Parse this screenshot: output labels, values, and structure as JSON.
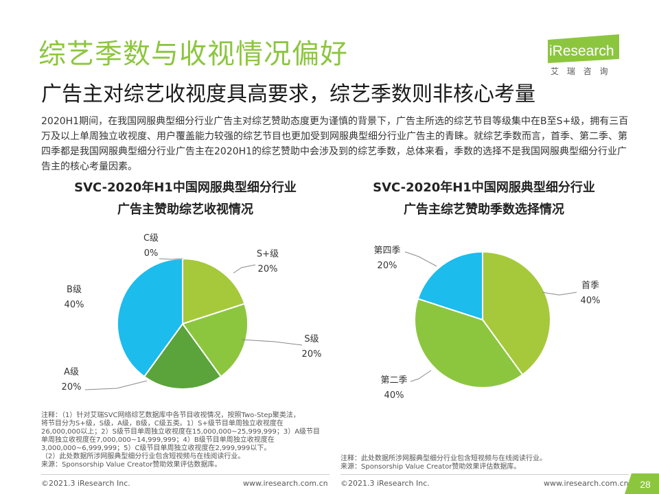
{
  "header": {
    "title": "综艺季数与收视情况偏好",
    "subtitle": "广告主对综艺收视度具高要求，综艺季数则非核心考量",
    "logo_text": "iResearch",
    "logo_cn": "艾 瑞 咨 询"
  },
  "intro": "2020H1期间，在我国网服典型细分行业广告主对综艺赞助态度更为谨慎的背景下，广告主所选的综艺节目等级集中在B至S+级，拥有三百万及以上单周独立收视度、用户覆盖能力较强的综艺节目也更加受到网服典型细分行业广告主的青睐。就综艺季数而言，首季、第二季、第四季都是我国网服典型细分行业广告主在2020H1的综艺赞助中会涉及到的综艺季数，总体来看，季数的选择不是我国网服典型细分行业广告主的核心考量因素。",
  "chart_data": [
    {
      "type": "pie",
      "title_line1": "SVC-2020年H1中国网服典型细分行业",
      "title_line2": "广告主赞助综艺收视情况",
      "slices": [
        {
          "label": "C级",
          "value": 0,
          "display": "0%",
          "color": "#8cc63f"
        },
        {
          "label": "S+级",
          "value": 20,
          "display": "20%",
          "color": "#a5c93b"
        },
        {
          "label": "S级",
          "value": 20,
          "display": "20%",
          "color": "#8cc63f"
        },
        {
          "label": "A级",
          "value": 20,
          "display": "20%",
          "color": "#5aa43b"
        },
        {
          "label": "B级",
          "value": 40,
          "display": "40%",
          "color": "#1cbcec"
        }
      ]
    },
    {
      "type": "pie",
      "title_line1": "SVC-2020年H1中国网服典型细分行业",
      "title_line2": "广告主综艺赞助季数选择情况",
      "slices": [
        {
          "label": "首季",
          "value": 40,
          "display": "40%",
          "color": "#a5c93b"
        },
        {
          "label": "第二季",
          "value": 40,
          "display": "40%",
          "color": "#8cc63f"
        },
        {
          "label": "第四季",
          "value": 20,
          "display": "20%",
          "color": "#1cbcec"
        }
      ]
    }
  ],
  "notes_left": [
    "注释：（1）针对艾瑞SVC网络综艺数据库中各节目收视情况，按照Two-Step聚类法，",
    "将节目分为S+级，S级，A级，B级，C级五类。1）S+级节目单周独立收视度在",
    "26,000,000以上；2）S级节目单周独立收视度在15,000,000~25,999,999；3）A级节目",
    "单周独立收视度在7,000,000~14,999,999；4）B级节目单周独立收视度在",
    "3,000,000~6,999,999；5）C级节目单周独立收视度在2,999,999以下。",
    "（2）此处数据所涉网服典型细分行业包含短视频与在线阅读行业。",
    "来源：Sponsorship Value Creator赞助效果评估数据库。"
  ],
  "notes_right": [
    "注释：此处数据所涉网服典型细分行业包含短视频与在线阅读行业。",
    "来源：Sponsorship Value Creator赞助效果评估数据库。"
  ],
  "footer": {
    "left_copyright": "©2021.3 iResearch Inc.",
    "left_url": "www.iresearch.com.cn",
    "right_copyright": "©2021.3 iResearch Inc.",
    "right_url": "www.iresearch.com.cn",
    "page_number": "28"
  }
}
